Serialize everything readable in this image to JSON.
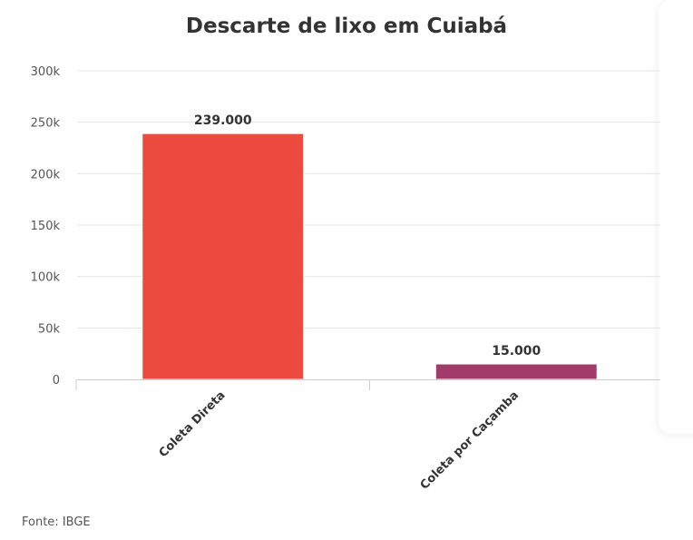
{
  "chart_data": {
    "type": "bar",
    "title": "Descarte de lixo em Cuiabá",
    "categories": [
      "Coleta Direta",
      "Coleta por Caçamba"
    ],
    "values": [
      239000,
      15000
    ],
    "data_labels": [
      "239.000",
      "15.000"
    ],
    "colors": [
      "#ec4a3f",
      "#a33b6a"
    ],
    "ylim": [
      0,
      300000
    ],
    "yticks": [
      0,
      50000,
      100000,
      150000,
      200000,
      250000,
      300000
    ],
    "ytick_labels": [
      "0",
      "50k",
      "100k",
      "150k",
      "200k",
      "250k",
      "300k"
    ],
    "xlabel": "",
    "ylabel": "",
    "grid": true,
    "legend": "none"
  },
  "source": "Fonte: IBGE"
}
